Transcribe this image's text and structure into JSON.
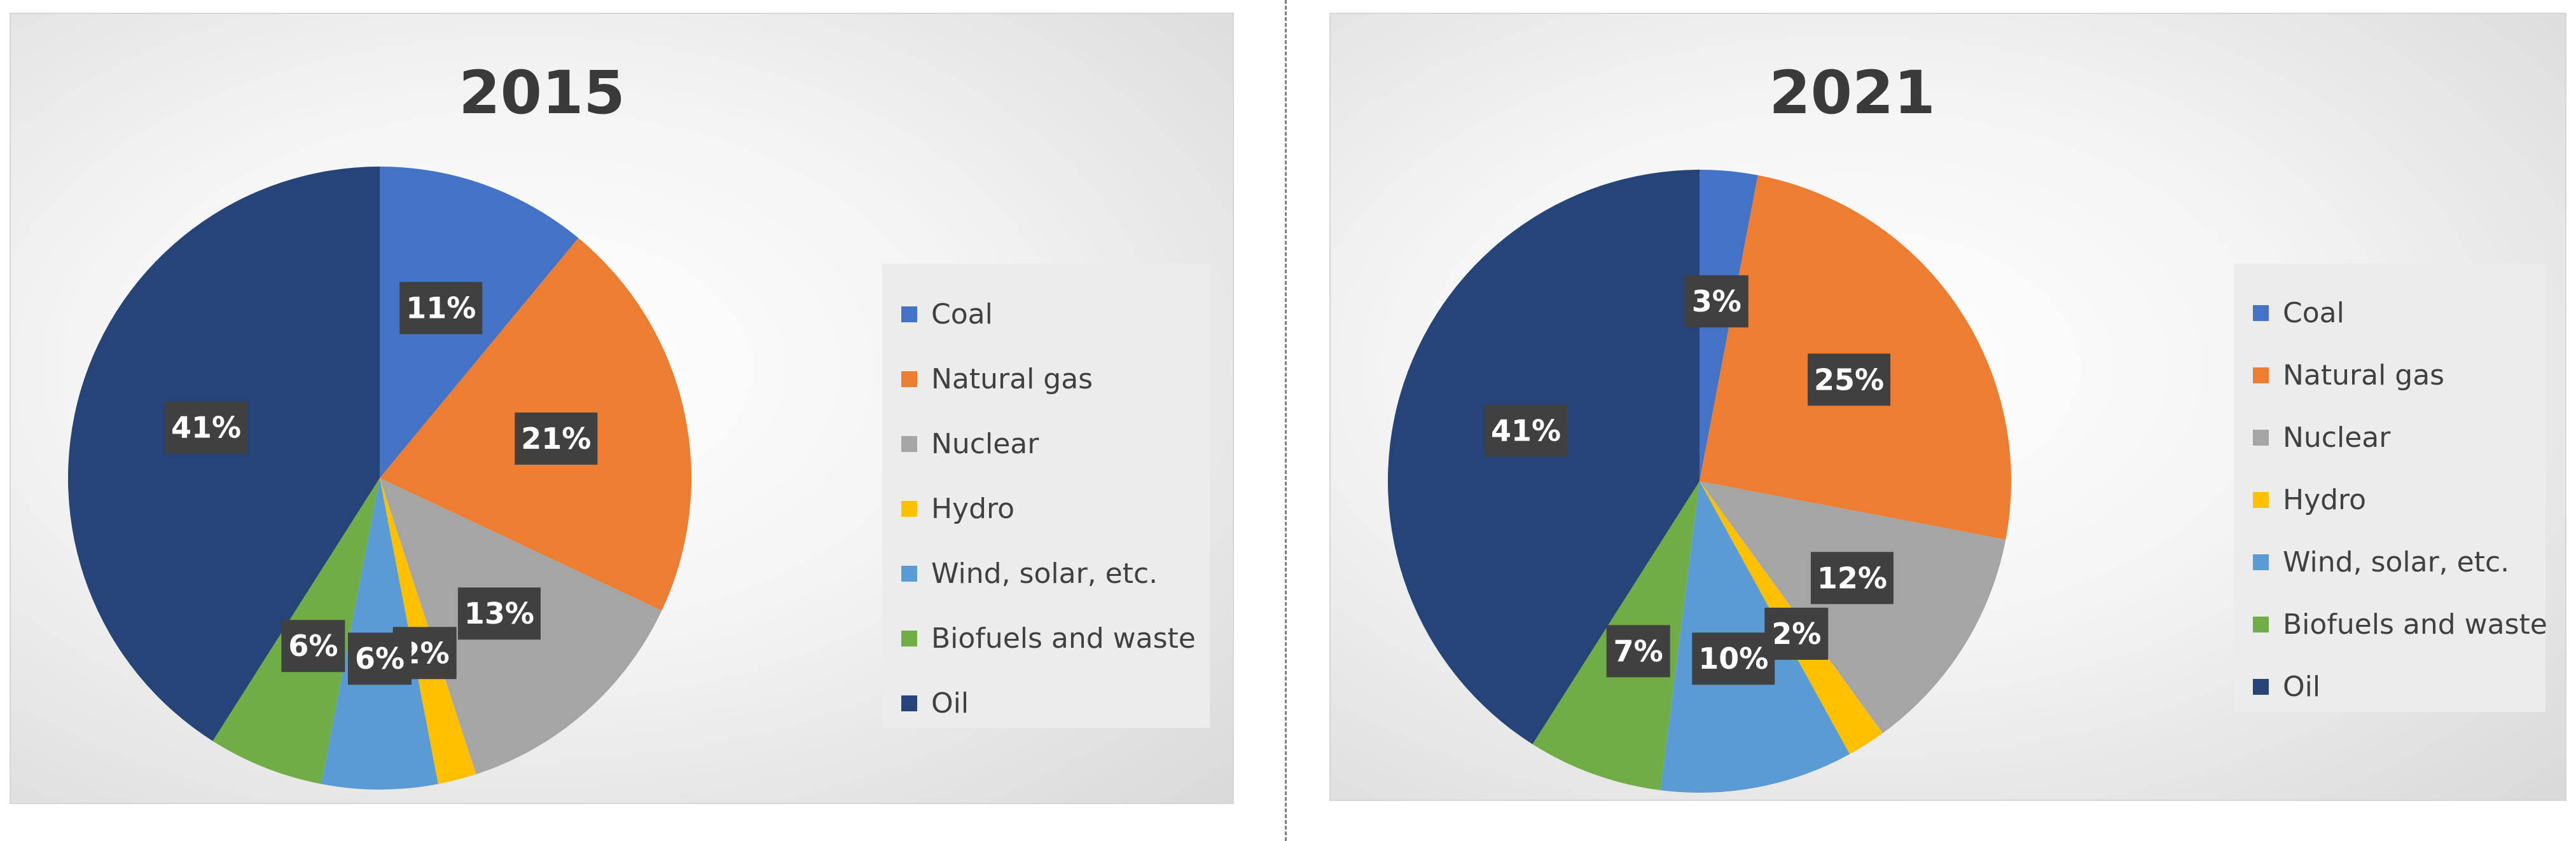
{
  "chart_data": [
    {
      "type": "pie",
      "title": "2015",
      "categories": [
        "Coal",
        "Natural gas",
        "Nuclear",
        "Hydro",
        "Wind, solar, etc.",
        "Biofuels and waste",
        "Oil"
      ],
      "values": [
        11,
        21,
        13,
        2,
        6,
        6,
        41
      ],
      "data_labels": [
        "11%",
        "21%",
        "13%",
        "2%",
        "6%",
        "6%",
        "41%"
      ],
      "legend_position": "right"
    },
    {
      "type": "pie",
      "title": "2021",
      "categories": [
        "Coal",
        "Natural gas",
        "Nuclear",
        "Hydro",
        "Wind, solar, etc.",
        "Biofuels and waste",
        "Oil"
      ],
      "values": [
        3,
        25,
        12,
        2,
        10,
        7,
        41
      ],
      "data_labels": [
        "3%",
        "25%",
        "12%",
        "2%",
        "10%",
        "7%",
        "41%"
      ],
      "legend_position": "right"
    }
  ],
  "colors": {
    "Coal": "#4472c4",
    "Natural gas": "#ed7d31",
    "Nuclear": "#a5a5a5",
    "Hydro": "#ffc000",
    "Wind, solar, etc.": "#5b9bd5",
    "Biofuels and waste": "#70ad47",
    "Oil": "#264478",
    "label_background": "#404040",
    "label_text": "#ffffff"
  }
}
